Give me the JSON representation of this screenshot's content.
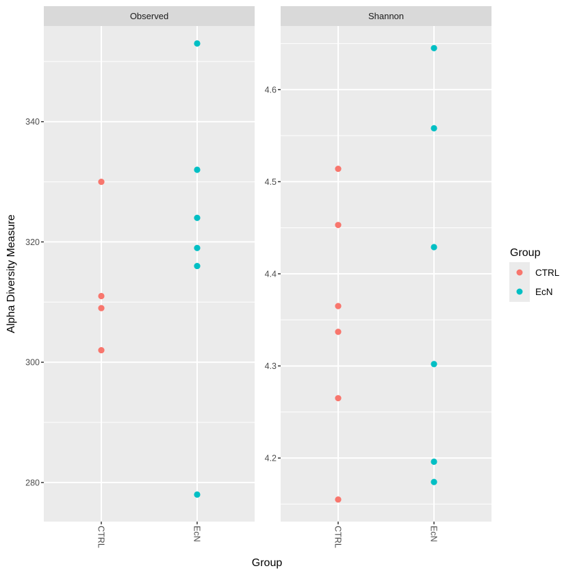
{
  "chart_data": {
    "type": "scatter",
    "title": "",
    "xlabel": "Group",
    "ylabel": "Alpha Diversity Measure",
    "categories": [
      "CTRL",
      "EcN"
    ],
    "colors": {
      "CTRL": "#F8766D",
      "EcN": "#00BFC4"
    },
    "grid": true,
    "legend": {
      "title": "Group",
      "placement": "right",
      "entries": [
        {
          "label": "CTRL",
          "color": "#F8766D"
        },
        {
          "label": "EcN",
          "color": "#00BFC4"
        }
      ]
    },
    "panels": [
      {
        "strip": "Observed",
        "ylim": [
          273.5,
          355.9
        ],
        "yticks": [
          280,
          300,
          320,
          340
        ],
        "ytick_labels": [
          "280",
          "300",
          "320",
          "340"
        ],
        "minor_yticks": [
          290,
          310,
          330,
          350
        ],
        "series": [
          {
            "name": "CTRL",
            "x": "CTRL",
            "values": [
              330,
              311,
              309,
              302
            ]
          },
          {
            "name": "EcN",
            "x": "EcN",
            "values": [
              353,
              332,
              324,
              319,
              316,
              278
            ]
          }
        ]
      },
      {
        "strip": "Shannon",
        "ylim": [
          4.131,
          4.669
        ],
        "yticks": [
          4.2,
          4.3,
          4.4,
          4.5,
          4.6
        ],
        "ytick_labels": [
          "4.2",
          "4.3",
          "4.4",
          "4.5",
          "4.6"
        ],
        "minor_yticks": [
          4.15,
          4.25,
          4.35,
          4.45,
          4.55,
          4.65
        ],
        "series": [
          {
            "name": "CTRL",
            "x": "CTRL",
            "values": [
              4.514,
              4.453,
              4.365,
              4.337,
              4.265,
              4.155
            ]
          },
          {
            "name": "EcN",
            "x": "EcN",
            "values": [
              4.645,
              4.558,
              4.429,
              4.302,
              4.196,
              4.174
            ]
          }
        ]
      }
    ]
  }
}
